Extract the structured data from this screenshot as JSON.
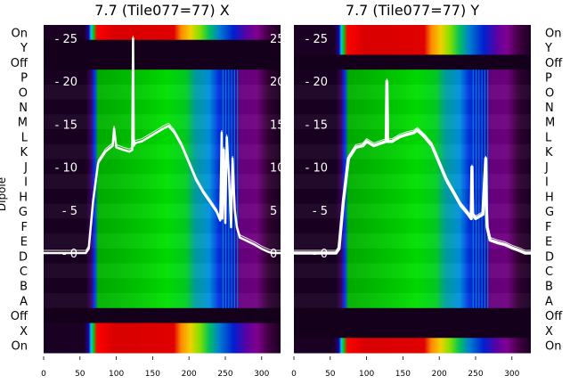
{
  "chart_data": [
    {
      "type": "heatmap",
      "title": "7.7 (Tile077=77) X",
      "ylabel": "Dipole",
      "xlim": [
        0,
        326
      ],
      "xticks": [
        "0",
        "50",
        "100",
        "150",
        "200",
        "250",
        "300"
      ],
      "row_labels": [
        "On",
        "Y",
        "Off",
        "P",
        "O",
        "N",
        "M",
        "L",
        "K",
        "J",
        "I",
        "H",
        "G",
        "F",
        "E",
        "D",
        "C",
        "B",
        "A",
        "Off",
        "X",
        "On"
      ],
      "row_kinds": [
        "on",
        "off",
        "off",
        "active",
        "active",
        "active",
        "active",
        "active",
        "active",
        "active",
        "active",
        "active",
        "active",
        "active",
        "active",
        "active",
        "active",
        "active",
        "active",
        "off",
        "on",
        "on"
      ],
      "overlay_yticks": [
        "0",
        "5",
        "10",
        "15",
        "20",
        "25"
      ],
      "overlay_ylim": [
        0,
        25
      ],
      "overlay_line": {
        "x": [
          0,
          58,
          62,
          68,
          75,
          85,
          95,
          97,
          100,
          110,
          118,
          122,
          123,
          124,
          126,
          135,
          145,
          155,
          165,
          172,
          180,
          190,
          200,
          210,
          220,
          230,
          238,
          243,
          245,
          246,
          248,
          250,
          252,
          255,
          258,
          260,
          263,
          266,
          270,
          280,
          290,
          300,
          310,
          316,
          326
        ],
        "y": [
          0,
          0,
          0.5,
          6,
          10.5,
          11.8,
          12.5,
          14.5,
          12.3,
          12,
          11.8,
          12,
          25,
          12.5,
          12.8,
          13,
          13.5,
          14,
          14.5,
          14.8,
          14,
          12.5,
          10.5,
          8.5,
          7,
          5.8,
          4.8,
          3.8,
          14,
          4,
          12,
          3.5,
          13.5,
          9,
          3,
          11,
          5,
          3,
          1.8,
          1.4,
          1,
          0.5,
          0.1,
          0,
          0
        ]
      }
    },
    {
      "type": "heatmap",
      "title": "7.7 (Tile077=77) Y",
      "xlim": [
        0,
        326
      ],
      "xticks": [
        "0",
        "50",
        "100",
        "150",
        "200",
        "250",
        "300"
      ],
      "row_labels": [
        "On",
        "Y",
        "Off",
        "P",
        "O",
        "N",
        "M",
        "L",
        "K",
        "J",
        "I",
        "H",
        "G",
        "F",
        "E",
        "D",
        "C",
        "B",
        "A",
        "Off",
        "X",
        "On"
      ],
      "row_kinds": [
        "on",
        "on",
        "off",
        "active",
        "active",
        "active",
        "active",
        "active",
        "active",
        "active",
        "active",
        "active",
        "active",
        "active",
        "active",
        "active",
        "active",
        "active",
        "active",
        "off",
        "off",
        "on"
      ],
      "overlay_yticks": [
        "0",
        "5",
        "10",
        "15",
        "20",
        "25"
      ],
      "overlay_ylim": [
        0,
        25
      ],
      "overlay_line": {
        "x": [
          0,
          58,
          62,
          68,
          75,
          85,
          95,
          100,
          110,
          120,
          127,
          128,
          129,
          135,
          145,
          155,
          165,
          170,
          180,
          190,
          200,
          210,
          220,
          230,
          240,
          244,
          245,
          246,
          250,
          260,
          264,
          265,
          266,
          270,
          280,
          290,
          300,
          310,
          318,
          326
        ],
        "y": [
          0,
          0,
          0.5,
          6,
          11,
          12.3,
          12.5,
          13,
          12.5,
          12.8,
          13,
          20,
          13,
          13,
          13.5,
          13.8,
          14,
          14.3,
          13.5,
          12.5,
          10.5,
          8.5,
          7,
          5.5,
          4.5,
          4,
          10,
          4.5,
          4,
          4.5,
          11,
          5,
          3,
          1.5,
          1.2,
          1,
          0.6,
          0.3,
          0,
          0
        ]
      }
    }
  ],
  "colors": {
    "background": "#ffffff",
    "off_row": "#14001a",
    "overlay": "#ffffff"
  }
}
